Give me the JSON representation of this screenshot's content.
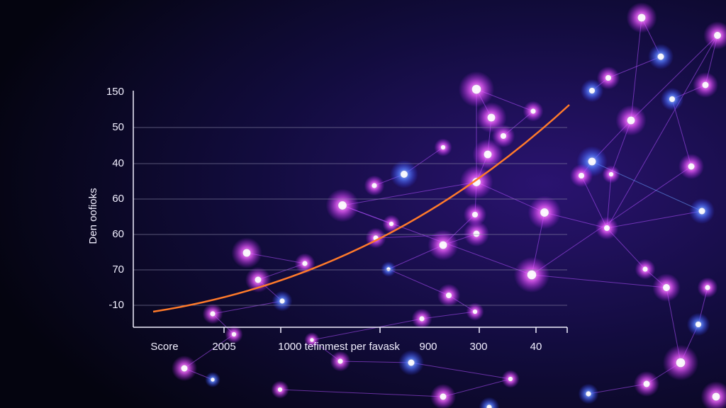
{
  "axis_title": "Den oofioks",
  "y_labels": [
    "150",
    "50",
    "40",
    "60",
    "60",
    "70",
    "-10"
  ],
  "x_labels": [
    "Score",
    "2005",
    "1000 tefinmest per favask",
    "900",
    "300",
    "40"
  ]
}
